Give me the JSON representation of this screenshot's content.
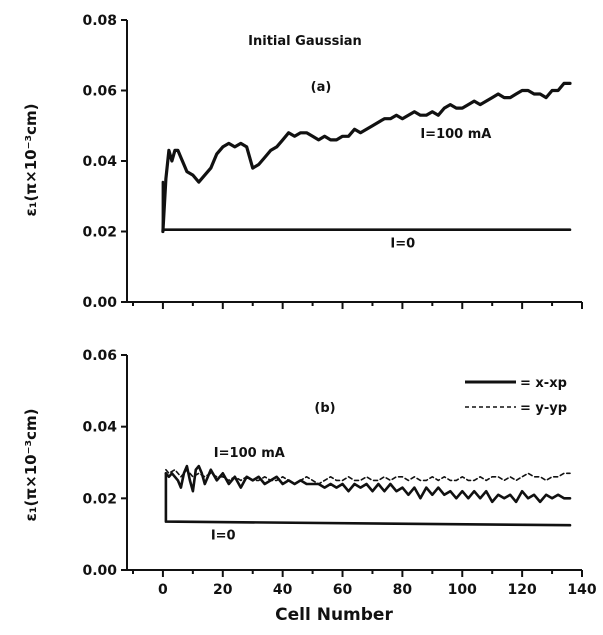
{
  "chart_data": [
    {
      "type": "line",
      "panel_label": "(a)",
      "title": "Initial Gaussian",
      "ylabel": "ε₁(π×10⁻³cm)",
      "xlabel": "",
      "xlim": [
        -12,
        140
      ],
      "ylim": [
        0.0,
        0.08
      ],
      "yticks": [
        0.0,
        0.02,
        0.04,
        0.06,
        0.08
      ],
      "ytick_labels": [
        "0.00",
        "0.02",
        "0.04",
        "0.06",
        "0.08"
      ],
      "xticks": [
        0,
        20,
        40,
        60,
        80,
        100,
        120,
        140
      ],
      "xtick_labels": [],
      "annotations": [
        {
          "text": "I=100 mA",
          "x": 86,
          "y": 0.0465
        },
        {
          "text": "I=0",
          "x": 76,
          "y": 0.0155
        }
      ],
      "series": [
        {
          "style": "solid",
          "thickness": "heavy",
          "x": [
            0,
            1,
            2,
            3,
            4,
            5,
            6,
            7,
            8,
            10,
            12,
            14,
            16,
            18,
            20,
            22,
            24,
            26,
            28,
            30,
            32,
            34,
            36,
            38,
            40,
            42,
            44,
            46,
            48,
            50,
            52,
            54,
            56,
            58,
            60,
            62,
            64,
            66,
            68,
            70,
            72,
            74,
            76,
            78,
            80,
            82,
            84,
            86,
            88,
            90,
            92,
            94,
            96,
            98,
            100,
            102,
            104,
            106,
            108,
            110,
            112,
            114,
            116,
            118,
            120,
            122,
            124,
            126,
            128,
            130,
            132,
            134,
            136
          ],
          "y": [
            0.02,
            0.035,
            0.043,
            0.04,
            0.043,
            0.043,
            0.041,
            0.039,
            0.037,
            0.036,
            0.034,
            0.036,
            0.038,
            0.042,
            0.044,
            0.045,
            0.044,
            0.045,
            0.044,
            0.038,
            0.039,
            0.041,
            0.043,
            0.044,
            0.046,
            0.048,
            0.047,
            0.048,
            0.048,
            0.047,
            0.046,
            0.047,
            0.046,
            0.046,
            0.047,
            0.047,
            0.049,
            0.048,
            0.049,
            0.05,
            0.051,
            0.052,
            0.052,
            0.053,
            0.052,
            0.053,
            0.054,
            0.053,
            0.053,
            0.054,
            0.053,
            0.055,
            0.056,
            0.055,
            0.055,
            0.056,
            0.057,
            0.056,
            0.057,
            0.058,
            0.059,
            0.058,
            0.058,
            0.059,
            0.06,
            0.06,
            0.059,
            0.059,
            0.058,
            0.06,
            0.06,
            0.062,
            0.062
          ]
        },
        {
          "style": "solid",
          "thickness": "normal",
          "x": [
            0,
            0,
            136
          ],
          "y": [
            0.034,
            0.0205,
            0.0205
          ]
        }
      ]
    },
    {
      "type": "line",
      "panel_label": "(b)",
      "title": "",
      "ylabel": "ε₁(π×10⁻³cm)",
      "xlabel": "Cell Number",
      "xlim": [
        -12,
        140
      ],
      "ylim": [
        0.0,
        0.06
      ],
      "yticks": [
        0.0,
        0.02,
        0.04,
        0.06
      ],
      "ytick_labels": [
        "0.00",
        "0.02",
        "0.04",
        "0.06"
      ],
      "xticks": [
        0,
        20,
        40,
        60,
        80,
        100,
        120,
        140
      ],
      "xtick_labels": [
        "0",
        "20",
        "40",
        "60",
        "80",
        "100",
        "120",
        "140"
      ],
      "legend": {
        "placement": "top-right",
        "entries": [
          {
            "label": "= x-xp",
            "style": "solid"
          },
          {
            "label": "= y-yp",
            "style": "dashed"
          }
        ]
      },
      "annotations": [
        {
          "text": "I=100 mA",
          "x": 17,
          "y": 0.0315
        },
        {
          "text": "I=0",
          "x": 16,
          "y": 0.0085
        }
      ],
      "series": [
        {
          "name": "= x-xp",
          "style": "solid",
          "x": [
            1,
            2,
            3,
            4,
            5,
            6,
            7,
            8,
            9,
            10,
            11,
            12,
            13,
            14,
            16,
            18,
            20,
            22,
            24,
            26,
            28,
            30,
            32,
            34,
            36,
            38,
            40,
            42,
            44,
            46,
            48,
            50,
            52,
            54,
            56,
            58,
            60,
            62,
            64,
            66,
            68,
            70,
            72,
            74,
            76,
            78,
            80,
            82,
            84,
            86,
            88,
            90,
            92,
            94,
            96,
            98,
            100,
            102,
            104,
            106,
            108,
            110,
            112,
            114,
            116,
            118,
            120,
            122,
            124,
            126,
            128,
            130,
            132,
            134,
            136
          ],
          "y": [
            0.027,
            0.026,
            0.027,
            0.026,
            0.025,
            0.023,
            0.027,
            0.029,
            0.025,
            0.022,
            0.028,
            0.029,
            0.027,
            0.024,
            0.028,
            0.025,
            0.027,
            0.024,
            0.026,
            0.023,
            0.026,
            0.025,
            0.026,
            0.024,
            0.025,
            0.026,
            0.024,
            0.025,
            0.024,
            0.025,
            0.024,
            0.024,
            0.024,
            0.023,
            0.024,
            0.023,
            0.024,
            0.022,
            0.024,
            0.023,
            0.024,
            0.022,
            0.024,
            0.022,
            0.024,
            0.022,
            0.023,
            0.021,
            0.023,
            0.02,
            0.023,
            0.021,
            0.023,
            0.021,
            0.022,
            0.02,
            0.022,
            0.02,
            0.022,
            0.02,
            0.022,
            0.019,
            0.021,
            0.02,
            0.021,
            0.019,
            0.022,
            0.02,
            0.021,
            0.019,
            0.021,
            0.02,
            0.021,
            0.02,
            0.02
          ]
        },
        {
          "name": "= y-yp",
          "style": "dashed",
          "x": [
            1,
            2,
            4,
            6,
            8,
            10,
            12,
            14,
            16,
            18,
            20,
            22,
            24,
            26,
            28,
            30,
            32,
            34,
            36,
            38,
            40,
            42,
            44,
            46,
            48,
            50,
            52,
            54,
            56,
            58,
            60,
            62,
            64,
            66,
            68,
            70,
            72,
            74,
            76,
            78,
            80,
            82,
            84,
            86,
            88,
            90,
            92,
            94,
            96,
            98,
            100,
            102,
            104,
            106,
            108,
            110,
            112,
            114,
            116,
            118,
            120,
            122,
            124,
            126,
            128,
            130,
            132,
            134,
            136
          ],
          "y": [
            0.028,
            0.027,
            0.028,
            0.026,
            0.028,
            0.026,
            0.027,
            0.026,
            0.027,
            0.026,
            0.026,
            0.025,
            0.026,
            0.025,
            0.026,
            0.025,
            0.025,
            0.026,
            0.025,
            0.025,
            0.026,
            0.025,
            0.024,
            0.025,
            0.026,
            0.025,
            0.024,
            0.025,
            0.026,
            0.025,
            0.025,
            0.026,
            0.025,
            0.025,
            0.026,
            0.025,
            0.025,
            0.026,
            0.025,
            0.026,
            0.026,
            0.025,
            0.026,
            0.025,
            0.025,
            0.026,
            0.025,
            0.026,
            0.025,
            0.025,
            0.026,
            0.025,
            0.025,
            0.026,
            0.025,
            0.026,
            0.026,
            0.025,
            0.026,
            0.025,
            0.026,
            0.027,
            0.026,
            0.026,
            0.025,
            0.026,
            0.026,
            0.027,
            0.027
          ]
        },
        {
          "style": "solid",
          "x": [
            1,
            1,
            136
          ],
          "y": [
            0.027,
            0.0135,
            0.0125
          ]
        }
      ]
    }
  ]
}
